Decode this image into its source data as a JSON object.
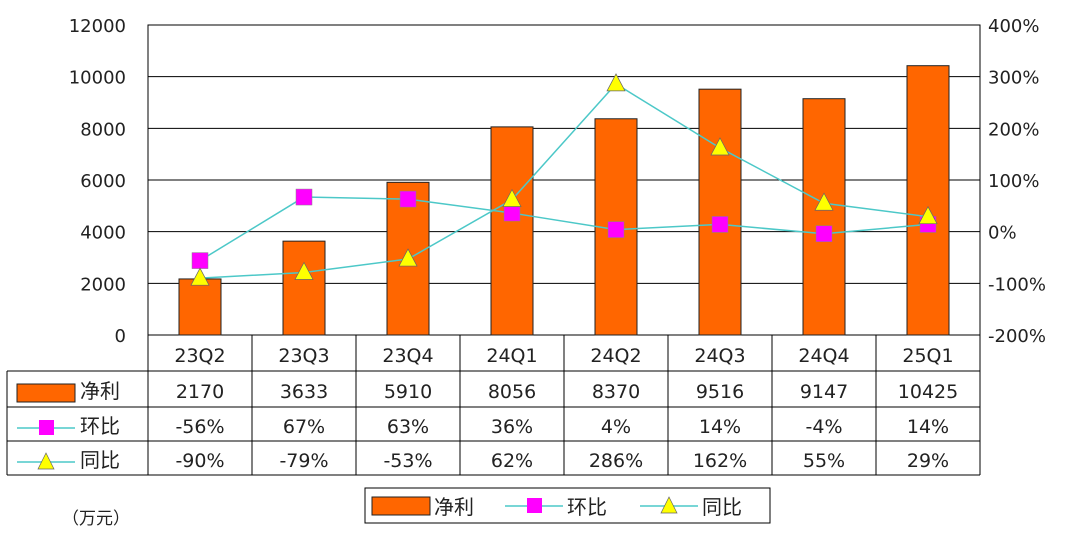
{
  "chart_data": {
    "type": "bar",
    "unit_label": "（万元）",
    "categories": [
      "23Q2",
      "23Q3",
      "23Q4",
      "24Q1",
      "24Q2",
      "24Q3",
      "24Q4",
      "25Q1"
    ],
    "left_axis": {
      "range": [
        0,
        12000
      ],
      "ticks": [
        "0",
        "2000",
        "4000",
        "6000",
        "8000",
        "10000",
        "12000"
      ]
    },
    "right_axis": {
      "range": [
        -200,
        400
      ],
      "ticks": [
        "-200%",
        "-100%",
        "0%",
        "100%",
        "200%",
        "300%",
        "400%"
      ]
    },
    "grid": true,
    "legend_position": "bottom",
    "series": [
      {
        "name": "净利",
        "type": "bar",
        "axis": "left",
        "color": "#ff6600",
        "values": [
          2170,
          3633,
          5910,
          8056,
          8370,
          9516,
          9147,
          10425
        ],
        "labels": [
          "2170",
          "3633",
          "5910",
          "8056",
          "8370",
          "9516",
          "9147",
          "10425"
        ]
      },
      {
        "name": "环比",
        "type": "line",
        "axis": "right",
        "marker": "square",
        "color": "#4cc8c8",
        "marker_color": "#ff00ff",
        "values": [
          -56,
          67,
          63,
          36,
          4,
          14,
          -4,
          14
        ],
        "labels": [
          "-56%",
          "67%",
          "63%",
          "36%",
          "4%",
          "14%",
          "-4%",
          "14%"
        ]
      },
      {
        "name": "同比",
        "type": "line",
        "axis": "right",
        "marker": "triangle",
        "color": "#4cc8c8",
        "marker_color": "#ffff00",
        "values": [
          -90,
          -79,
          -53,
          62,
          286,
          162,
          55,
          29
        ],
        "labels": [
          "-90%",
          "-79%",
          "-53%",
          "62%",
          "286%",
          "162%",
          "55%",
          "29%"
        ]
      }
    ]
  }
}
